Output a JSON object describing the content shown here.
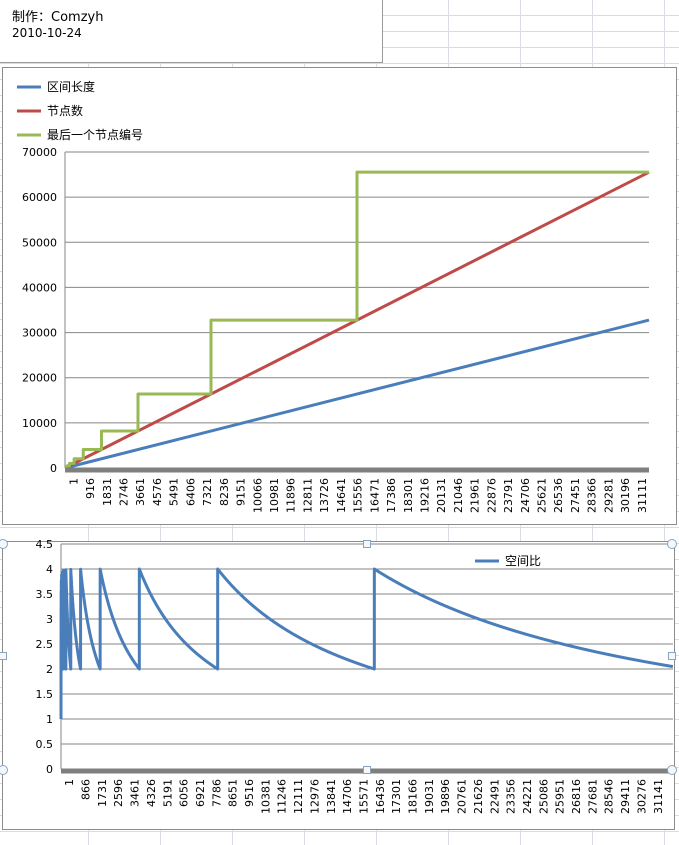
{
  "note": {
    "line1": "制作：Comzyh",
    "line2": "2010-10-24"
  },
  "chart_data": [
    {
      "type": "line",
      "title": "",
      "xlabel": "",
      "ylabel": "",
      "ylim": [
        0,
        70000
      ],
      "yticks": [
        "0",
        "10000",
        "20000",
        "30000",
        "40000",
        "50000",
        "60000",
        "70000"
      ],
      "xticks": [
        "1",
        "916",
        "1831",
        "2746",
        "3661",
        "4576",
        "5491",
        "6406",
        "7321",
        "8236",
        "9151",
        "10066",
        "10981",
        "11896",
        "12811",
        "13726",
        "14641",
        "15556",
        "16471",
        "17386",
        "18301",
        "19216",
        "20131",
        "21046",
        "21961",
        "22876",
        "23791",
        "24706",
        "25621",
        "26536",
        "27451",
        "28366",
        "29281",
        "30196",
        "31111"
      ],
      "x_range": [
        1,
        32768
      ],
      "grid": true,
      "legend_position": "top-left",
      "series": [
        {
          "name": "区间长度",
          "color": "#4a7ebb",
          "points": [
            [
              1,
              1
            ],
            [
              32768,
              32768
            ]
          ]
        },
        {
          "name": "节点数",
          "color": "#be4b48",
          "points": [
            [
              1,
              1
            ],
            [
              32768,
              65535
            ]
          ]
        },
        {
          "name": "最后一个节点编号",
          "color": "#98b954",
          "points": [
            [
              1,
              1
            ],
            [
              64,
              128
            ],
            [
              65,
              256
            ],
            [
              128,
              256
            ],
            [
              129,
              512
            ],
            [
              256,
              512
            ],
            [
              257,
              1024
            ],
            [
              512,
              1024
            ],
            [
              513,
              2048
            ],
            [
              1024,
              2048
            ],
            [
              1025,
              4096
            ],
            [
              2048,
              4096
            ],
            [
              2049,
              8192
            ],
            [
              4096,
              8192
            ],
            [
              4097,
              16384
            ],
            [
              8192,
              16384
            ],
            [
              8193,
              32768
            ],
            [
              16384,
              32768
            ],
            [
              16385,
              65536
            ],
            [
              32768,
              65536
            ]
          ]
        }
      ]
    },
    {
      "type": "line",
      "title": "",
      "xlabel": "",
      "ylabel": "",
      "ylim": [
        0,
        4.5
      ],
      "yticks": [
        "0",
        "0.5",
        "1",
        "1.5",
        "2",
        "2.5",
        "3",
        "3.5",
        "4",
        "4.5"
      ],
      "xticks": [
        "1",
        "866",
        "1731",
        "2596",
        "3461",
        "4326",
        "5191",
        "6056",
        "6921",
        "7786",
        "8651",
        "9516",
        "10381",
        "11246",
        "12111",
        "12976",
        "13841",
        "14706",
        "15571",
        "16436",
        "17301",
        "18166",
        "19031",
        "19896",
        "20761",
        "21626",
        "22491",
        "23356",
        "24221",
        "25086",
        "25951",
        "26816",
        "27681",
        "28546",
        "29411",
        "30276",
        "31141"
      ],
      "x_range": [
        1,
        32000
      ],
      "grid": true,
      "legend_position": "top-right",
      "series": [
        {
          "name": "空间比",
          "color": "#4a7ebb",
          "formula": "last_node_number / interval_length"
        }
      ]
    }
  ]
}
